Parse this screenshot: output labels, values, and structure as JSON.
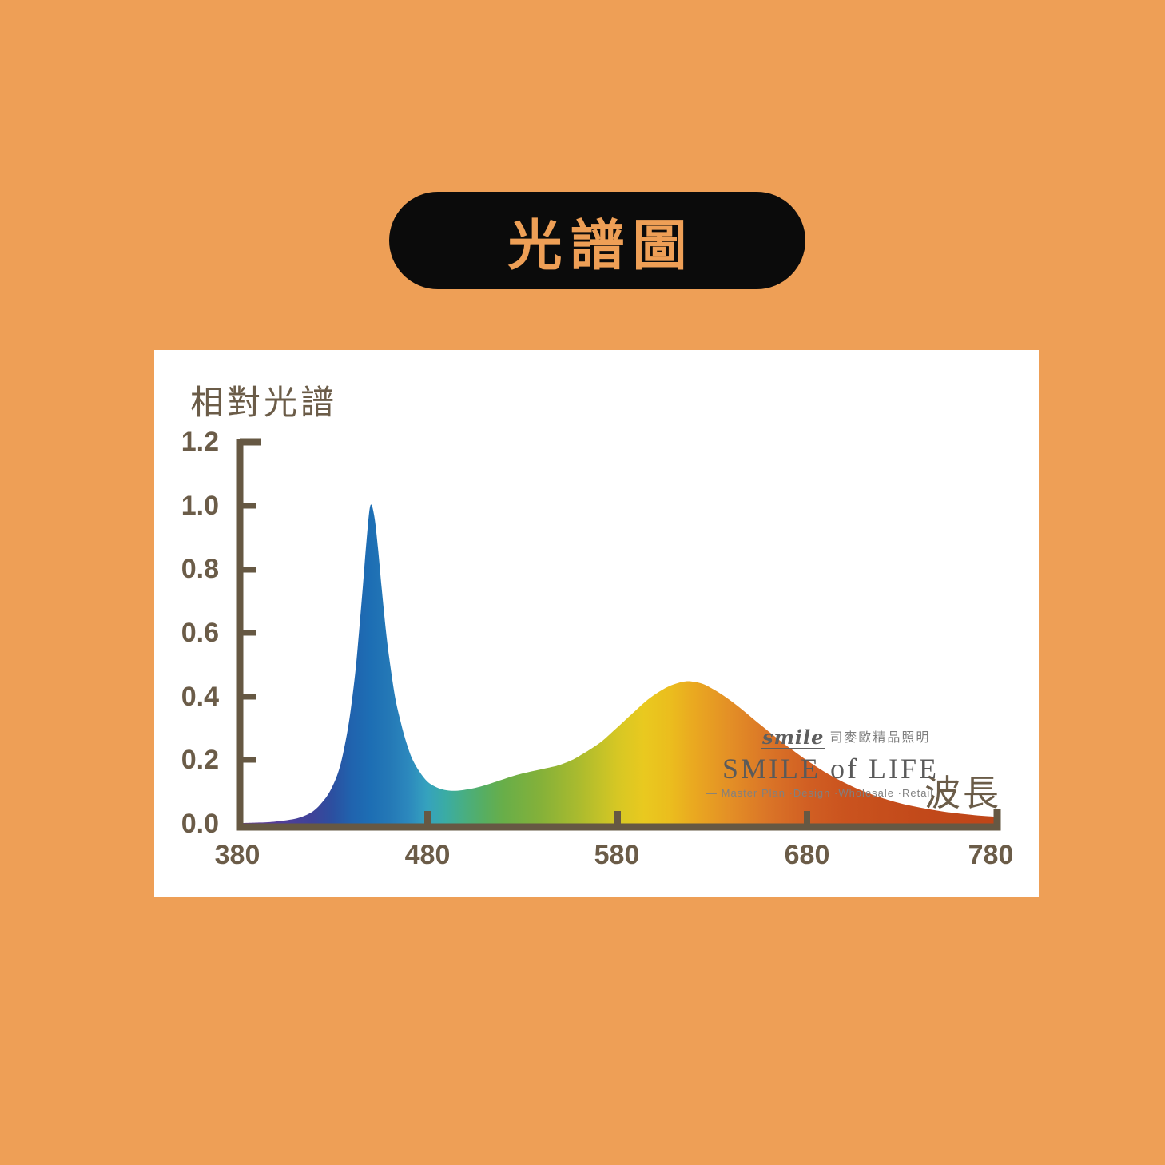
{
  "page": {
    "background_color": "#EE9F56",
    "panel_color": "#FFFFFF"
  },
  "title": {
    "text": "光譜圖",
    "pill_color": "#0B0B0B",
    "text_color": "#EE9F56"
  },
  "axis": {
    "color": "#665843",
    "label_color": "#6B5C48"
  },
  "labels": {
    "y_axis_title": "相對光譜",
    "x_axis_title": "波長",
    "y_ticks": [
      "1.2",
      "1.0",
      "0.8",
      "0.6",
      "0.4",
      "0.2",
      "0.0"
    ],
    "x_ticks": [
      "380",
      "480",
      "580",
      "680",
      "780"
    ]
  },
  "watermark": {
    "script": "smile",
    "cjk": "司麥歐精品照明",
    "main": "SMILE of LIFE",
    "tagline": "— Master Plan ·Design ·Wholesale ·Retail"
  },
  "chart_data": {
    "type": "area",
    "title": "光譜圖 (spectrum chart)",
    "xlabel": "波長",
    "ylabel": "相對光譜",
    "xlim": [
      380,
      780
    ],
    "ylim": [
      0,
      1.2
    ],
    "x_tick_values": [
      380,
      480,
      580,
      680,
      780
    ],
    "y_tick_values": [
      0.0,
      0.2,
      0.4,
      0.6,
      0.8,
      1.0,
      1.2
    ],
    "grid": false,
    "legend": false,
    "peaks": [
      {
        "x": 450,
        "y": 1.0
      },
      {
        "x": 615,
        "y": 0.45
      }
    ],
    "points": [
      [
        380,
        0.002
      ],
      [
        392,
        0.004
      ],
      [
        400,
        0.007
      ],
      [
        408,
        0.013
      ],
      [
        414,
        0.022
      ],
      [
        420,
        0.04
      ],
      [
        425,
        0.07
      ],
      [
        429,
        0.105
      ],
      [
        433,
        0.16
      ],
      [
        436,
        0.23
      ],
      [
        439,
        0.33
      ],
      [
        442,
        0.47
      ],
      [
        444,
        0.6
      ],
      [
        446,
        0.74
      ],
      [
        448,
        0.89
      ],
      [
        450,
        1.0
      ],
      [
        452,
        0.97
      ],
      [
        454,
        0.87
      ],
      [
        456,
        0.74
      ],
      [
        458,
        0.62
      ],
      [
        460,
        0.52
      ],
      [
        463,
        0.4
      ],
      [
        466,
        0.32
      ],
      [
        469,
        0.255
      ],
      [
        472,
        0.205
      ],
      [
        476,
        0.163
      ],
      [
        480,
        0.133
      ],
      [
        484,
        0.117
      ],
      [
        488,
        0.108
      ],
      [
        492,
        0.104
      ],
      [
        496,
        0.104
      ],
      [
        500,
        0.107
      ],
      [
        506,
        0.114
      ],
      [
        512,
        0.124
      ],
      [
        518,
        0.136
      ],
      [
        524,
        0.148
      ],
      [
        530,
        0.158
      ],
      [
        536,
        0.166
      ],
      [
        542,
        0.174
      ],
      [
        548,
        0.182
      ],
      [
        552,
        0.19
      ],
      [
        556,
        0.2
      ],
      [
        560,
        0.213
      ],
      [
        566,
        0.235
      ],
      [
        572,
        0.26
      ],
      [
        578,
        0.292
      ],
      [
        584,
        0.325
      ],
      [
        590,
        0.358
      ],
      [
        596,
        0.39
      ],
      [
        602,
        0.415
      ],
      [
        607,
        0.432
      ],
      [
        612,
        0.443
      ],
      [
        616,
        0.448
      ],
      [
        620,
        0.447
      ],
      [
        625,
        0.44
      ],
      [
        630,
        0.425
      ],
      [
        636,
        0.403
      ],
      [
        642,
        0.377
      ],
      [
        648,
        0.348
      ],
      [
        654,
        0.318
      ],
      [
        660,
        0.289
      ],
      [
        666,
        0.26
      ],
      [
        672,
        0.233
      ],
      [
        678,
        0.207
      ],
      [
        684,
        0.183
      ],
      [
        690,
        0.16
      ],
      [
        696,
        0.14
      ],
      [
        702,
        0.122
      ],
      [
        708,
        0.106
      ],
      [
        714,
        0.092
      ],
      [
        720,
        0.08
      ],
      [
        728,
        0.066
      ],
      [
        736,
        0.055
      ],
      [
        744,
        0.046
      ],
      [
        752,
        0.038
      ],
      [
        760,
        0.032
      ],
      [
        768,
        0.027
      ],
      [
        774,
        0.024
      ],
      [
        780,
        0.022
      ]
    ],
    "gradient_stops": [
      [
        0.0,
        "#6B3E98"
      ],
      [
        0.05,
        "#553D99"
      ],
      [
        0.1,
        "#3D4399"
      ],
      [
        0.125,
        "#2C4FA0"
      ],
      [
        0.15,
        "#2063AE"
      ],
      [
        0.175,
        "#1D6EB4"
      ],
      [
        0.2,
        "#2478B6"
      ],
      [
        0.225,
        "#2C88BD"
      ],
      [
        0.25,
        "#35A2BE"
      ],
      [
        0.275,
        "#3BACA3"
      ],
      [
        0.3,
        "#49AE80"
      ],
      [
        0.325,
        "#57AE61"
      ],
      [
        0.35,
        "#68AE49"
      ],
      [
        0.4,
        "#85B139"
      ],
      [
        0.45,
        "#ABBB2E"
      ],
      [
        0.5,
        "#D6C724"
      ],
      [
        0.535,
        "#E9C91F"
      ],
      [
        0.57,
        "#EBBD1E"
      ],
      [
        0.6,
        "#EAA920"
      ],
      [
        0.65,
        "#E38E26"
      ],
      [
        0.7,
        "#DA7427"
      ],
      [
        0.75,
        "#D15F23"
      ],
      [
        0.8,
        "#CA531E"
      ],
      [
        0.9,
        "#C2491A"
      ],
      [
        1.0,
        "#BE4518"
      ]
    ]
  }
}
